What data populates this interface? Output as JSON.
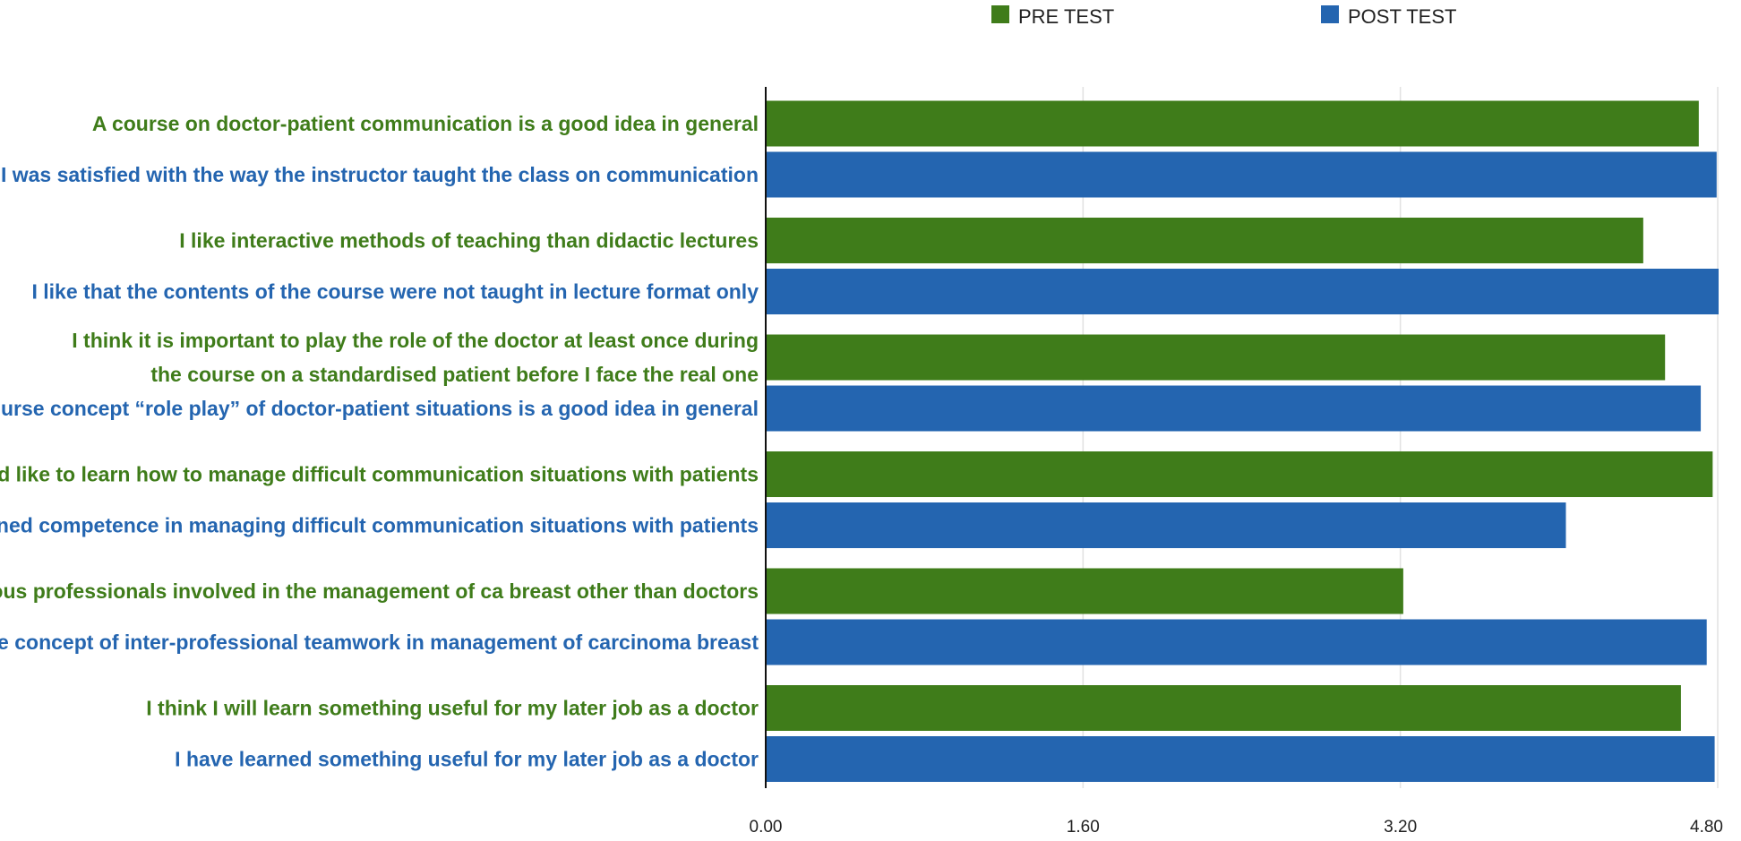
{
  "chart_data": {
    "type": "bar",
    "orientation": "horizontal",
    "title": "",
    "xlabel": "",
    "ylabel": "",
    "xlim": [
      0,
      4.8
    ],
    "xticks": [
      "0.00",
      "1.60",
      "3.20",
      "4.80"
    ],
    "xtick_values": [
      0,
      1.6,
      3.2,
      4.8
    ],
    "grid": true,
    "legend_position": "top",
    "series": [
      {
        "name": "PRE TEST",
        "color": "#3f7c1a"
      },
      {
        "name": "POST TEST",
        "color": "#2465b0"
      }
    ],
    "bars": [
      {
        "series": "PRE TEST",
        "label_lines": [
          "A course on doctor-patient communication is a good idea in general"
        ],
        "value": 4.7
      },
      {
        "series": "POST TEST",
        "label_lines": [
          "I was satisfied with the way the instructor taught the class on communication"
        ],
        "value": 4.79
      },
      {
        "series": "PRE TEST",
        "label_lines": [
          "I like interactive methods of teaching than didactic lectures"
        ],
        "value": 4.42
      },
      {
        "series": "POST TEST",
        "label_lines": [
          "I like that the contents of the course were not taught in lecture format only"
        ],
        "value": 4.8
      },
      {
        "series": "PRE TEST",
        "label_lines": [
          "I think it is important to play the role of the doctor at least once during",
          "the course on a standardised patient before I face the real one"
        ],
        "value": 4.53
      },
      {
        "series": "POST TEST",
        "label_lines": [
          "The course concept “role play” of doctor-patient situations is a good idea in general"
        ],
        "value": 4.71
      },
      {
        "series": "PRE TEST",
        "label_lines": [
          "I would like to learn how to manage difficult communication situations with patients"
        ],
        "value": 4.77
      },
      {
        "series": "POST TEST",
        "label_lines": [
          "I have gained competence in managing difficult communication situations with patients"
        ],
        "value": 4.03
      },
      {
        "series": "PRE TEST",
        "label_lines": [
          "I know the various professionals involved in the management of ca breast other than doctors"
        ],
        "value": 3.21
      },
      {
        "series": "POST TEST",
        "label_lines": [
          "I understood the concept of inter-professional teamwork in management of carcinoma breast"
        ],
        "value": 4.74
      },
      {
        "series": "PRE TEST",
        "label_lines": [
          "I think I will learn something useful for my later job as a doctor"
        ],
        "value": 4.61
      },
      {
        "series": "POST TEST",
        "label_lines": [
          "I have learned something useful for my later job as a doctor"
        ],
        "value": 4.78
      }
    ]
  }
}
